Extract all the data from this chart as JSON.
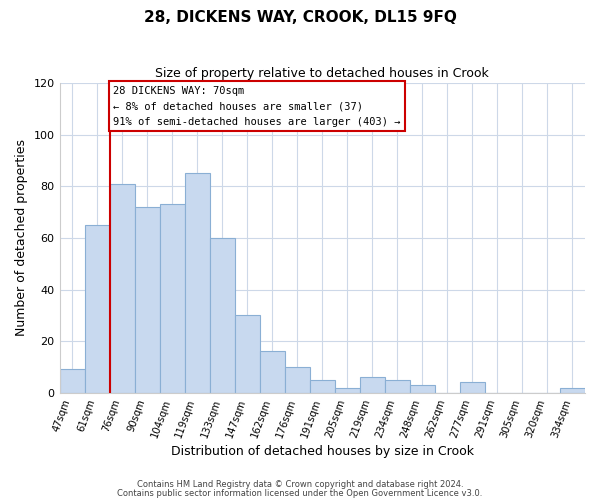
{
  "title": "28, DICKENS WAY, CROOK, DL15 9FQ",
  "subtitle": "Size of property relative to detached houses in Crook",
  "xlabel": "Distribution of detached houses by size in Crook",
  "ylabel": "Number of detached properties",
  "bar_labels": [
    "47sqm",
    "61sqm",
    "76sqm",
    "90sqm",
    "104sqm",
    "119sqm",
    "133sqm",
    "147sqm",
    "162sqm",
    "176sqm",
    "191sqm",
    "205sqm",
    "219sqm",
    "234sqm",
    "248sqm",
    "262sqm",
    "277sqm",
    "291sqm",
    "305sqm",
    "320sqm",
    "334sqm"
  ],
  "bar_values": [
    9,
    65,
    81,
    72,
    73,
    85,
    60,
    30,
    16,
    10,
    5,
    2,
    6,
    5,
    3,
    0,
    4,
    0,
    0,
    0,
    2
  ],
  "bar_color": "#c8d9ef",
  "bar_edge_color": "#8aafd4",
  "vline_x_index": 2,
  "vline_color": "#cc0000",
  "ylim": [
    0,
    120
  ],
  "yticks": [
    0,
    20,
    40,
    60,
    80,
    100,
    120
  ],
  "annotation_title": "28 DICKENS WAY: 70sqm",
  "annotation_line1": "← 8% of detached houses are smaller (37)",
  "annotation_line2": "91% of semi-detached houses are larger (403) →",
  "annotation_box_color": "#ffffff",
  "annotation_box_edge": "#cc0000",
  "footer1": "Contains HM Land Registry data © Crown copyright and database right 2024.",
  "footer2": "Contains public sector information licensed under the Open Government Licence v3.0.",
  "bg_color": "#ffffff",
  "grid_color": "#cdd8e8"
}
